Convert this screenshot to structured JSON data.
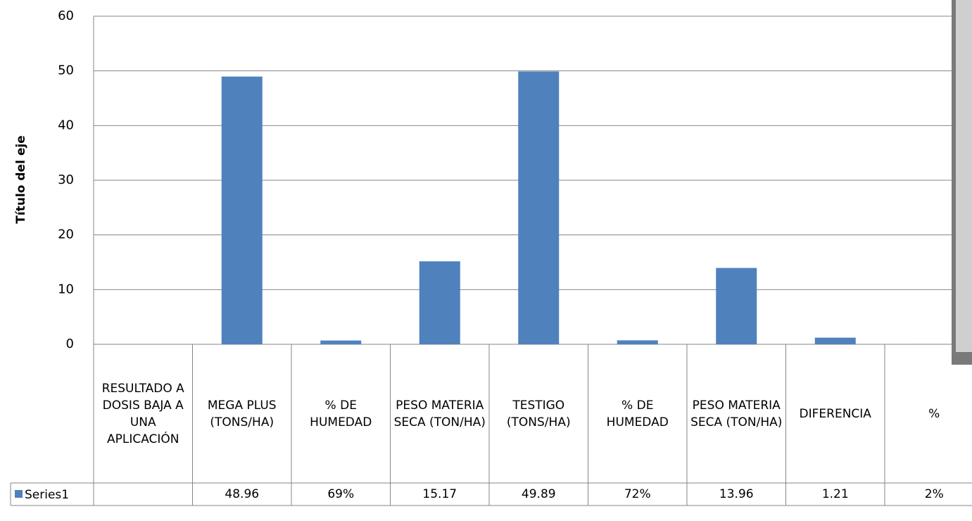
{
  "chart_data": {
    "type": "bar",
    "y_axis_title": "Título del eje",
    "categories": [
      "RESULTADO A DOSIS BAJA A UNA APLICACIÓN",
      "MEGA PLUS (TONS/HA)",
      "% DE HUMEDAD",
      "PESO MATERIA SECA (TON/HA)",
      "TESTIGO (TONS/HA)",
      "% DE HUMEDAD",
      "PESO MATERIA SECA (TON/HA)",
      "DIFERENCIA",
      "%"
    ],
    "series": [
      {
        "name": "Series1",
        "color": "#4f81bd",
        "values": [
          null,
          48.96,
          0.69,
          15.17,
          49.89,
          0.72,
          13.96,
          1.21,
          0.02
        ],
        "value_labels": [
          null,
          "48.96",
          "69%",
          "15.17",
          "49.89",
          "72%",
          "13.96",
          "1.21",
          "2%"
        ]
      }
    ],
    "ylim": [
      0,
      60
    ],
    "yticks": [
      0,
      10,
      20,
      30,
      40,
      50,
      60
    ],
    "grid": true
  }
}
